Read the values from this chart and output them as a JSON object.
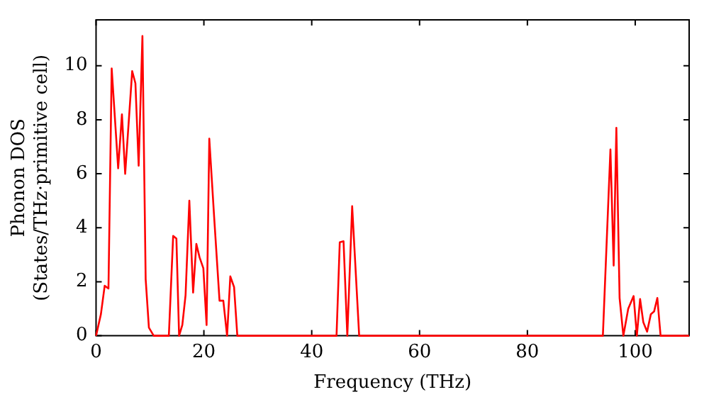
{
  "chart_data": {
    "type": "line",
    "xlabel": "Frequency (THz)",
    "ylabel": "Phonon DOS\n(States/THz·primitive cell)",
    "xlim": [
      0,
      110
    ],
    "ylim": [
      0,
      11.7
    ],
    "xticks": [
      0,
      20,
      40,
      60,
      80,
      100
    ],
    "yticks": [
      0,
      2,
      4,
      6,
      8,
      10
    ],
    "series": [
      {
        "color": "#ff0000",
        "x": [
          0,
          0.9,
          1.6,
          2.3,
          2.9,
          4.1,
          4.8,
          5.4,
          6.7,
          7.3,
          7.9,
          8.6,
          9.2,
          9.8,
          10.7,
          13.5,
          14.3,
          14.9,
          15.4,
          16,
          16.6,
          17.3,
          18,
          18.6,
          19.2,
          19.9,
          20.5,
          21,
          21.9,
          22.9,
          23.6,
          24.3,
          24.9,
          25.6,
          26.2,
          44.6,
          45.2,
          45.9,
          46.6,
          47.5,
          48.8,
          94,
          95.4,
          96,
          96.5,
          97.1,
          97.8,
          98.7,
          99.7,
          100.3,
          100.9,
          101.5,
          102.2,
          102.9,
          103.5,
          104.1,
          104.7,
          110
        ],
        "values": [
          0,
          0.8,
          1.85,
          1.75,
          9.9,
          6.2,
          8.2,
          6,
          9.8,
          9.35,
          6.3,
          11.1,
          2.1,
          0.3,
          0,
          0,
          3.7,
          3.6,
          0,
          0.4,
          1.5,
          5,
          1.6,
          3.4,
          2.9,
          2.5,
          0.4,
          7.3,
          4.4,
          1.3,
          1.3,
          0,
          2.2,
          1.8,
          0,
          0,
          3.46,
          3.5,
          0,
          4.8,
          0,
          0,
          6.9,
          2.6,
          7.7,
          1.4,
          0,
          1,
          1.47,
          0,
          1.36,
          0.5,
          0.15,
          0.8,
          0.9,
          1.4,
          0,
          0
        ]
      }
    ]
  }
}
